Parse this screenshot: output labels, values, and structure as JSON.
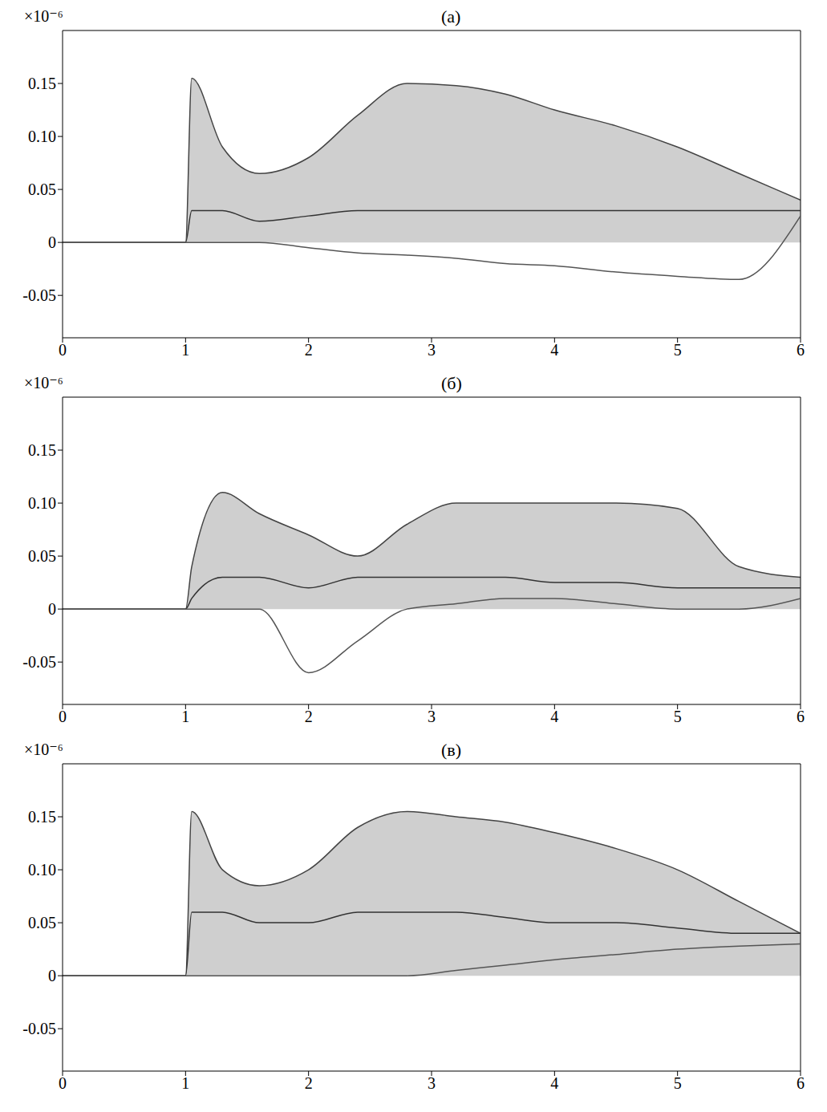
{
  "chart_data": [
    {
      "type": "line",
      "title": "(а)",
      "ylabel": "×10⁻⁶",
      "grid": false,
      "x": [
        0,
        1,
        1.05,
        1.3,
        1.6,
        2,
        2.4,
        2.8,
        3.2,
        3.6,
        4,
        4.5,
        5,
        5.5,
        6
      ],
      "series": [
        {
          "type": "area",
          "color": "#444444",
          "values": [
            0,
            0,
            0.155,
            0.09,
            0.065,
            0.08,
            0.12,
            0.15,
            0.148,
            0.14,
            0.125,
            0.11,
            0.09,
            0.065,
            0.04
          ]
        },
        {
          "type": "line",
          "color": "#333333",
          "values": [
            0,
            0,
            0.03,
            0.03,
            0.02,
            0.025,
            0.03,
            0.03,
            0.03,
            0.03,
            0.03,
            0.03,
            0.03,
            0.03,
            0.03
          ]
        },
        {
          "type": "line",
          "color": "#555555",
          "values": [
            0,
            0,
            0,
            0,
            0,
            -0.005,
            -0.01,
            -0.012,
            -0.015,
            -0.02,
            -0.022,
            -0.028,
            -0.032,
            -0.035,
            0.025
          ]
        }
      ],
      "xlim": [
        0,
        6
      ],
      "xticks": [
        0,
        1,
        2,
        3,
        4,
        5,
        6
      ],
      "ylim": [
        -0.09,
        0.2
      ],
      "yticks": [
        -0.05,
        0,
        0.05,
        {
          "value": 0.1,
          "label": "0.10"
        },
        0.15
      ]
    },
    {
      "type": "line",
      "title": "(б)",
      "ylabel": "×10⁻⁶",
      "grid": false,
      "x": [
        0,
        1,
        1.05,
        1.3,
        1.6,
        2,
        2.4,
        2.8,
        3.2,
        3.6,
        4,
        4.5,
        5,
        5.5,
        6
      ],
      "series": [
        {
          "type": "area",
          "color": "#444444",
          "values": [
            0,
            0,
            0.04,
            0.11,
            0.09,
            0.07,
            0.05,
            0.08,
            0.1,
            0.1,
            0.1,
            0.1,
            0.095,
            0.04,
            0.03
          ]
        },
        {
          "type": "line",
          "color": "#333333",
          "values": [
            0,
            0,
            0.01,
            0.03,
            0.03,
            0.02,
            0.03,
            0.03,
            0.03,
            0.03,
            0.025,
            0.025,
            0.02,
            0.02,
            0.02
          ]
        },
        {
          "type": "line",
          "color": "#555555",
          "values": [
            0,
            0,
            0,
            0,
            0,
            -0.06,
            -0.03,
            0,
            0.005,
            0.01,
            0.01,
            0.005,
            0,
            0,
            0.01
          ]
        }
      ],
      "xlim": [
        0,
        6
      ],
      "xticks": [
        0,
        1,
        2,
        3,
        4,
        5,
        6
      ],
      "ylim": [
        -0.09,
        0.2
      ],
      "yticks": [
        -0.05,
        0,
        0.05,
        {
          "value": 0.1,
          "label": "0.10"
        },
        0.15
      ]
    },
    {
      "type": "line",
      "title": "(в)",
      "ylabel": "×10⁻⁶",
      "grid": false,
      "x": [
        0,
        1,
        1.05,
        1.3,
        1.6,
        2,
        2.4,
        2.8,
        3.2,
        3.6,
        4,
        4.5,
        5,
        5.5,
        6
      ],
      "series": [
        {
          "type": "area",
          "color": "#444444",
          "values": [
            0,
            0,
            0.155,
            0.1,
            0.085,
            0.1,
            0.14,
            0.155,
            0.15,
            0.145,
            0.135,
            0.12,
            0.1,
            0.07,
            0.04
          ]
        },
        {
          "type": "line",
          "color": "#333333",
          "values": [
            0,
            0,
            0.06,
            0.06,
            0.05,
            0.05,
            0.06,
            0.06,
            0.06,
            0.055,
            0.05,
            0.05,
            0.045,
            0.04,
            0.04
          ]
        },
        {
          "type": "line",
          "color": "#555555",
          "values": [
            0,
            0,
            0,
            0,
            0,
            0,
            0,
            0,
            0.005,
            0.01,
            0.015,
            0.02,
            0.025,
            0.028,
            0.03
          ]
        }
      ],
      "xlim": [
        0,
        6
      ],
      "xticks": [
        0,
        1,
        2,
        3,
        4,
        5,
        6
      ],
      "ylim": [
        -0.09,
        0.2
      ],
      "yticks": [
        -0.05,
        0,
        0.05,
        {
          "value": 0.1,
          "label": "0.10"
        },
        0.15
      ]
    }
  ]
}
